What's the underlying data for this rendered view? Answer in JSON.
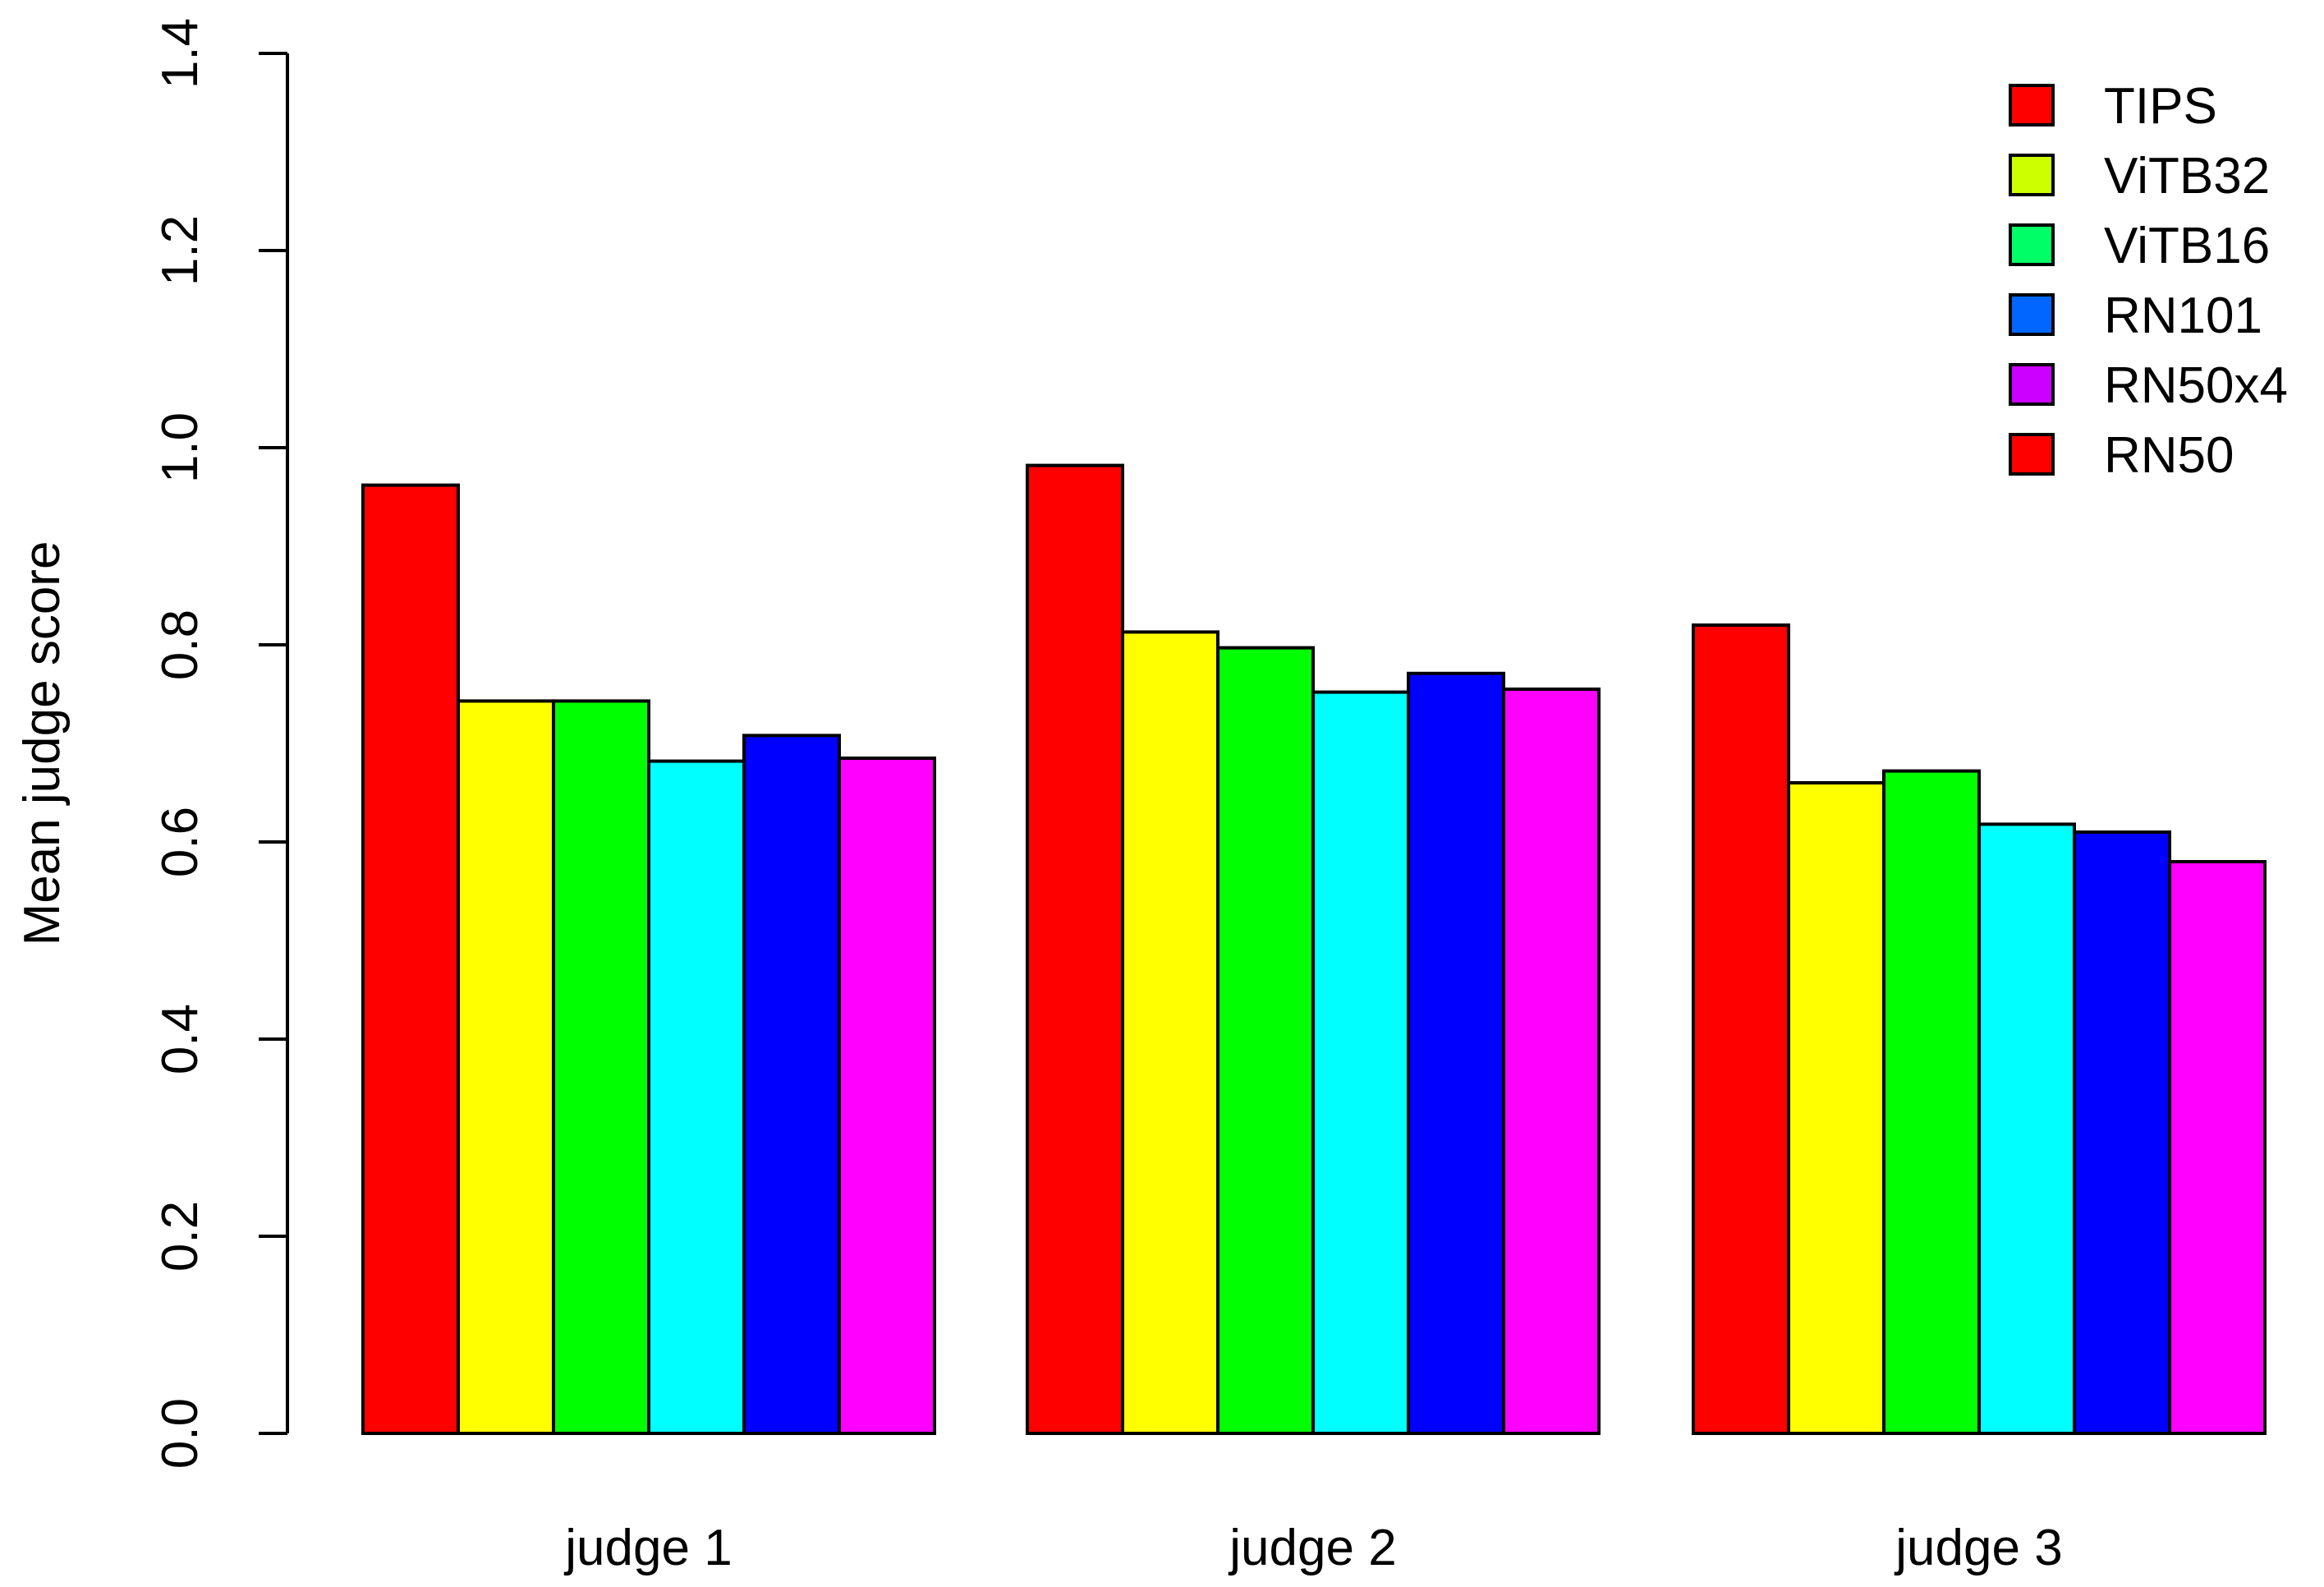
{
  "chart_data": {
    "type": "bar",
    "title": "",
    "xlabel": "",
    "ylabel": "Mean judge score",
    "ylim": [
      0,
      1.4
    ],
    "yticks": [
      "0.0",
      "0.2",
      "0.4",
      "0.6",
      "0.8",
      "1.0",
      "1.2",
      "1.4"
    ],
    "grid": false,
    "legend_position": "top-right",
    "categories": [
      "judge 1",
      "judge 2",
      "judge 3"
    ],
    "bar_colors": [
      "#ff0000",
      "#ffff00",
      "#00ff00",
      "#00ffff",
      "#0000ff",
      "#ff00ff"
    ],
    "series": [
      {
        "values": [
          0.962,
          0.982,
          0.82
        ]
      },
      {
        "values": [
          0.743,
          0.813,
          0.66
        ]
      },
      {
        "values": [
          0.743,
          0.797,
          0.672
        ]
      },
      {
        "values": [
          0.682,
          0.752,
          0.618
        ]
      },
      {
        "values": [
          0.708,
          0.771,
          0.61
        ]
      },
      {
        "values": [
          0.685,
          0.755,
          0.58
        ]
      }
    ],
    "legend": {
      "labels": [
        "TIPS",
        "ViTB32",
        "ViTB16",
        "RN101",
        "RN50x4",
        "RN50"
      ],
      "colors": [
        "#ff0000",
        "#ccff00",
        "#00ff66",
        "#0066ff",
        "#cc00ff",
        "#ff0000"
      ]
    }
  }
}
